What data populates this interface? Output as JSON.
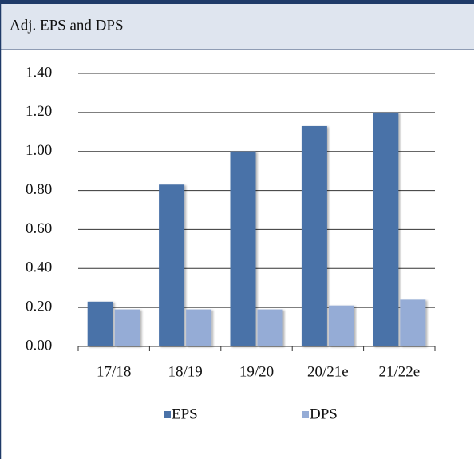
{
  "chart_data": {
    "type": "bar",
    "title": "Adj. EPS and DPS",
    "categories": [
      "17/18",
      "18/19",
      "19/20",
      "20/21e",
      "21/22e"
    ],
    "series": [
      {
        "name": "EPS",
        "color": "#4a72a8",
        "values": [
          0.23,
          0.83,
          1.0,
          1.13,
          1.2
        ]
      },
      {
        "name": "DPS",
        "color": "#95acd6",
        "values": [
          0.19,
          0.19,
          0.19,
          0.21,
          0.24
        ]
      }
    ],
    "ylim": [
      0,
      1.4
    ],
    "yticks": [
      {
        "value": 0,
        "label": "0.00"
      },
      {
        "value": 0.2,
        "label": "0.20"
      },
      {
        "value": 0.4,
        "label": "0.40"
      },
      {
        "value": 0.6,
        "label": "0.60"
      },
      {
        "value": 0.8,
        "label": "0.80"
      },
      {
        "value": 1.0,
        "label": "1.00"
      },
      {
        "value": 1.2,
        "label": "1.20"
      },
      {
        "value": 1.4,
        "label": "1.40"
      }
    ],
    "grid": true,
    "legend": "bottom"
  }
}
